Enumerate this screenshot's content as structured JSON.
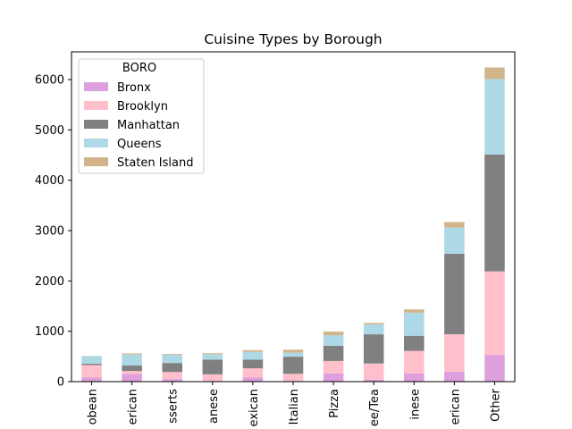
{
  "chart_data": {
    "type": "bar",
    "stacked": true,
    "title": "Cuisine Types by Borough",
    "xlabel": "",
    "ylabel": "",
    "ylim": [
      0,
      6550
    ],
    "yticks": [
      0,
      1000,
      2000,
      3000,
      4000,
      5000,
      6000
    ],
    "grid": false,
    "legend": {
      "title": "BORO",
      "placement": "top-left"
    },
    "categories": [
      "Caribbean",
      "Latin American",
      "Desserts",
      "Japanese",
      "Mexican",
      "Italian",
      "Pizza",
      "Coffee/Tea",
      "Chinese",
      "American",
      "Other"
    ],
    "tick_labels": [
      "obean",
      "erican",
      "sserts",
      "anese",
      "exican",
      "Italian",
      "Pizza",
      "ee/Tea",
      "inese",
      "erican",
      "Other"
    ],
    "series": [
      {
        "name": "Bronx",
        "color": "#dda0dd",
        "values": [
          80,
          150,
          50,
          15,
          80,
          15,
          160,
          40,
          160,
          200,
          530
        ]
      },
      {
        "name": "Brooklyn",
        "color": "#ffc0cb",
        "values": [
          250,
          60,
          140,
          130,
          185,
          140,
          250,
          320,
          450,
          740,
          1660
        ]
      },
      {
        "name": "Manhattan",
        "color": "#808080",
        "values": [
          25,
          110,
          180,
          290,
          170,
          340,
          300,
          580,
          300,
          1600,
          2320
        ]
      },
      {
        "name": "Queens",
        "color": "#add8e6",
        "values": [
          150,
          220,
          165,
          110,
          155,
          80,
          210,
          195,
          460,
          520,
          1500
        ]
      },
      {
        "name": "Staten Island",
        "color": "#d2b48c",
        "values": [
          5,
          20,
          15,
          20,
          35,
          60,
          75,
          30,
          65,
          110,
          230
        ]
      }
    ]
  }
}
